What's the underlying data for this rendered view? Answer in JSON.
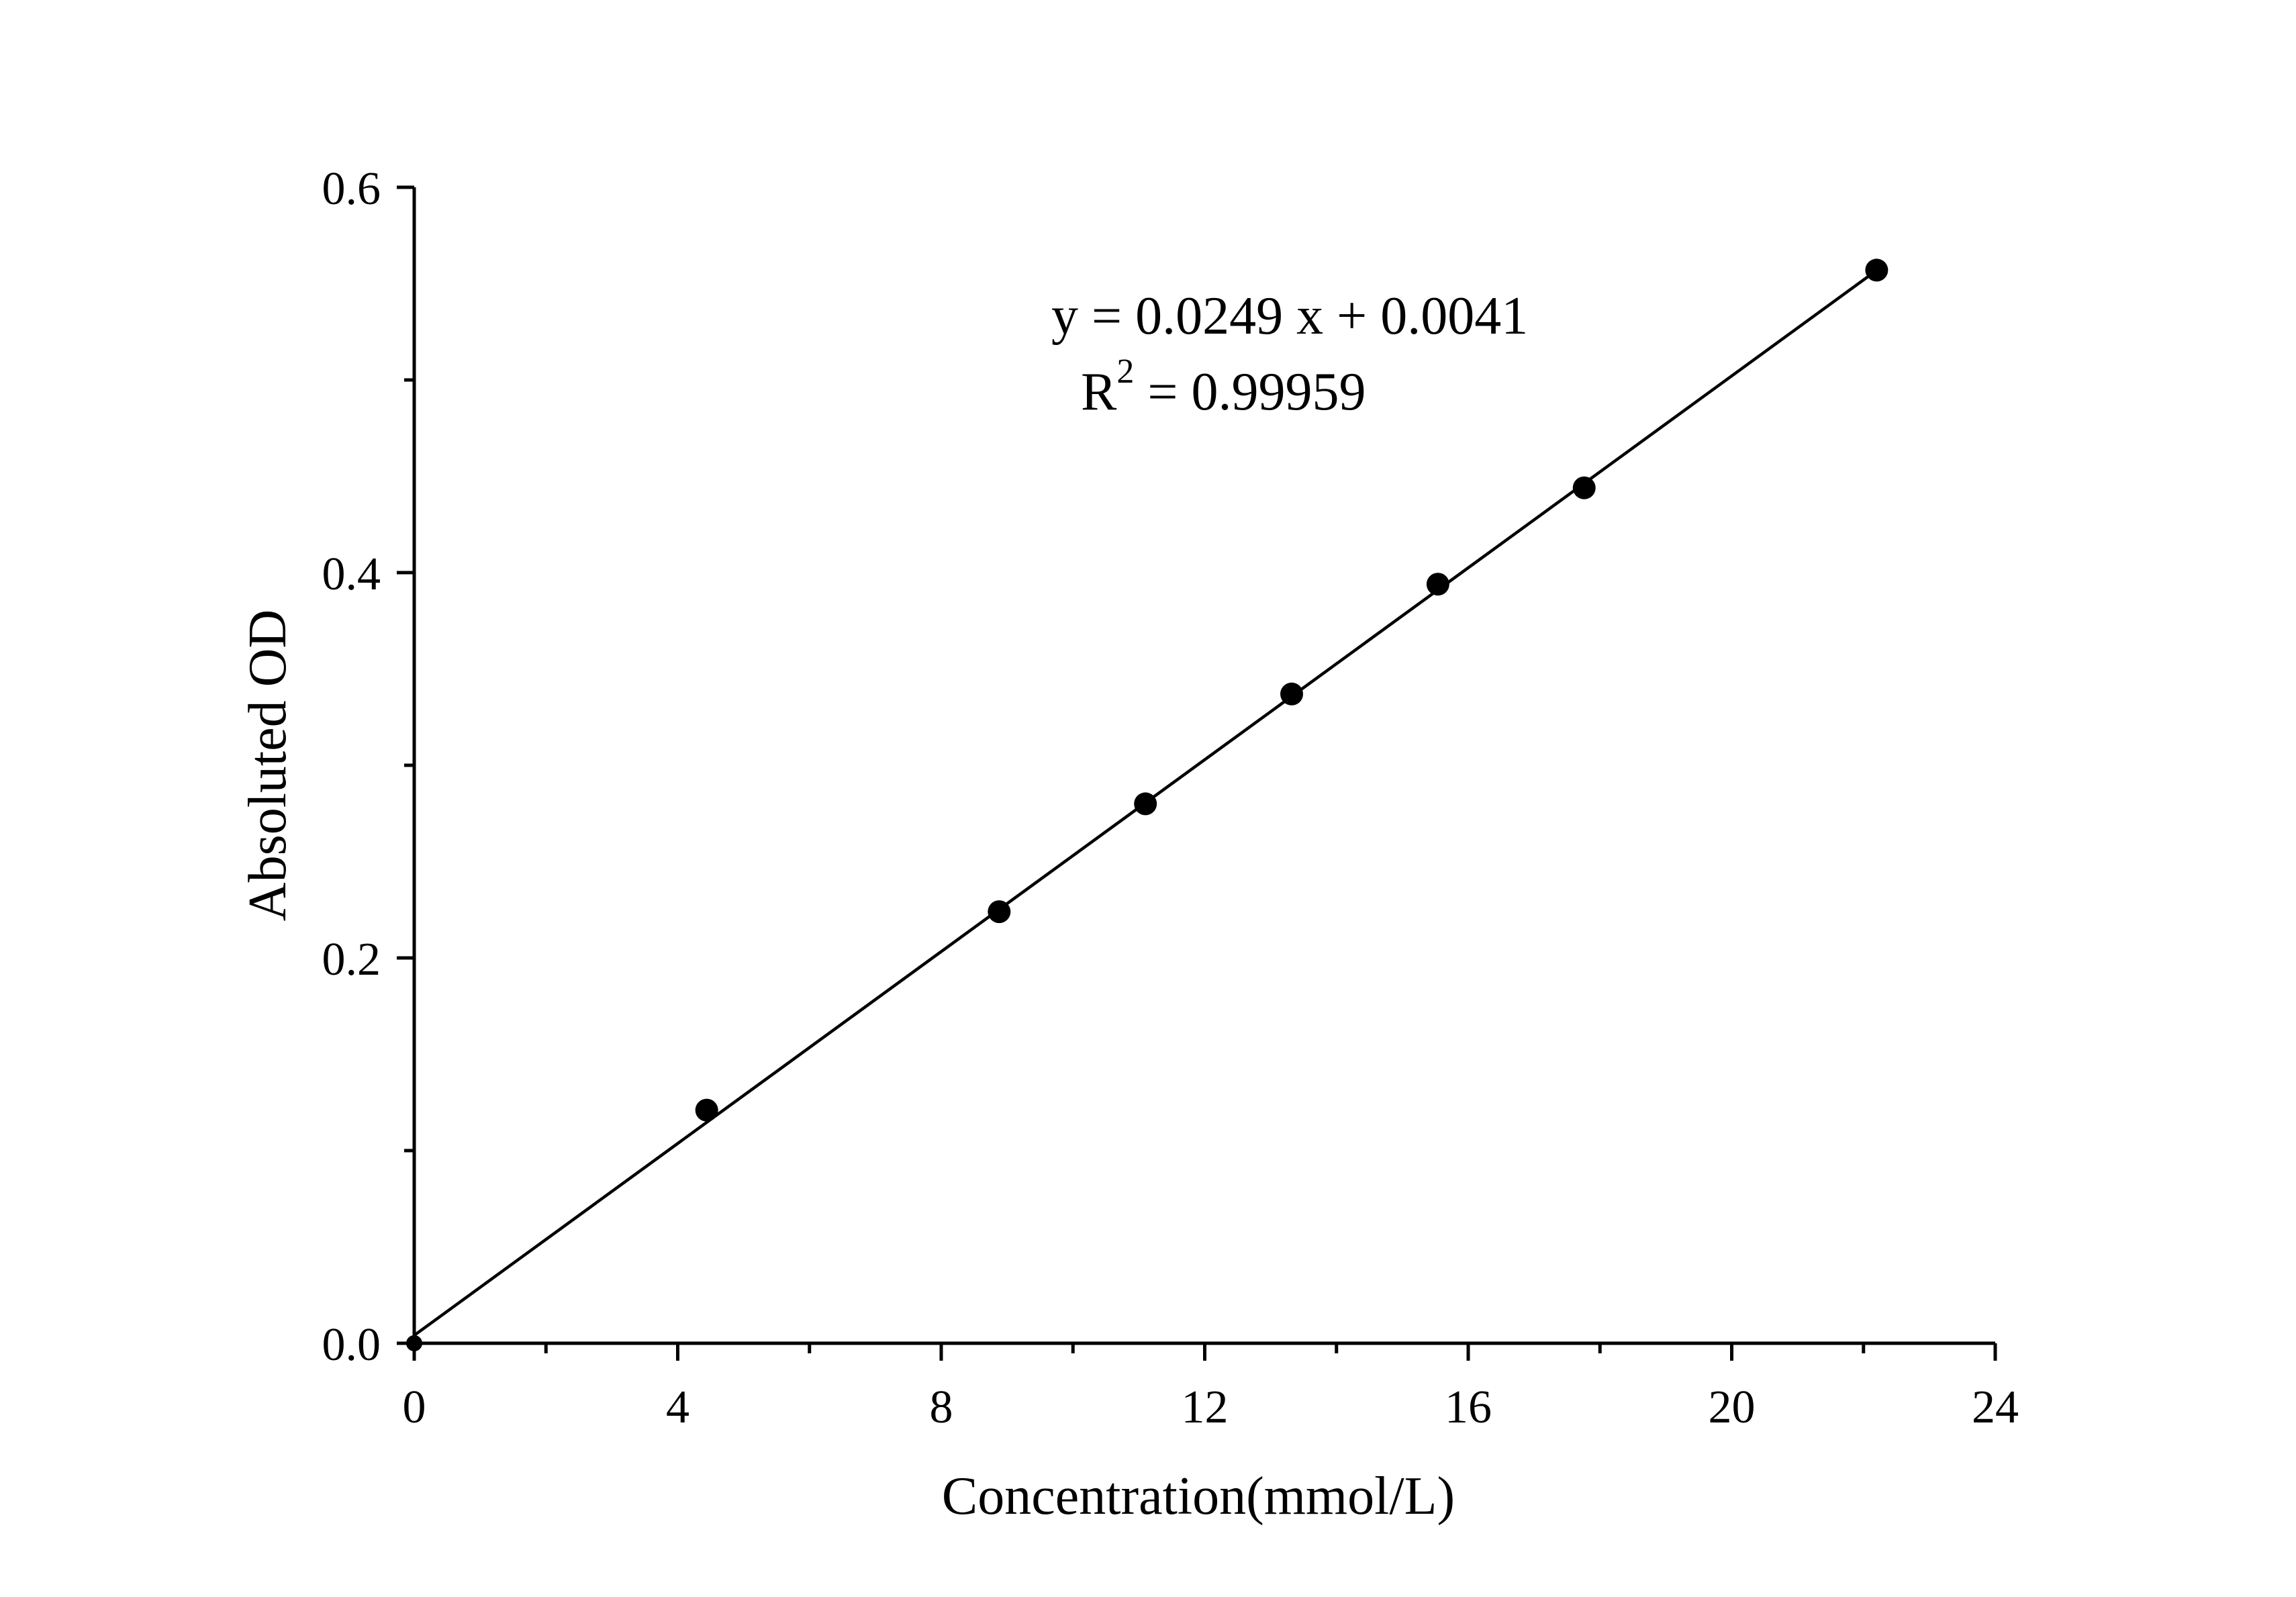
{
  "chart_data": {
    "type": "scatter",
    "xlabel": "Concentration(mmol/L)",
    "ylabel": "Absoluted OD",
    "xlim": [
      0,
      24
    ],
    "ylim": [
      0,
      0.6
    ],
    "x_major_ticks": [
      0,
      4,
      8,
      12,
      16,
      20,
      24
    ],
    "x_tick_labels": [
      "0",
      "4",
      "8",
      "12",
      "16",
      "20",
      "24"
    ],
    "x_minor_ticks": [
      2,
      6,
      10,
      14,
      18,
      22
    ],
    "y_major_ticks": [
      0,
      0.2,
      0.4,
      0.6
    ],
    "y_tick_labels": [
      "0.0",
      "0.2",
      "0.4",
      "0.6"
    ],
    "y_minor_ticks": [
      0.1,
      0.3,
      0.5
    ],
    "grid": false,
    "legend": "none",
    "series": [
      {
        "x": [
          0,
          4.44,
          8.88,
          11.1,
          13.32,
          15.54,
          17.76,
          22.2
        ],
        "y": [
          0,
          0.121,
          0.224,
          0.28,
          0.337,
          0.394,
          0.444,
          0.557
        ],
        "color": "#000000"
      }
    ],
    "fit": {
      "slope": 0.0249,
      "intercept": 0.0041,
      "x_range": [
        0,
        22.2
      ],
      "color": "#000000"
    },
    "annotations": {
      "equation": "y = 0.0249 x + 0.0041",
      "r2_prefix": "R",
      "r2_sup": "2",
      "r2_value": " = 0.99959"
    }
  }
}
